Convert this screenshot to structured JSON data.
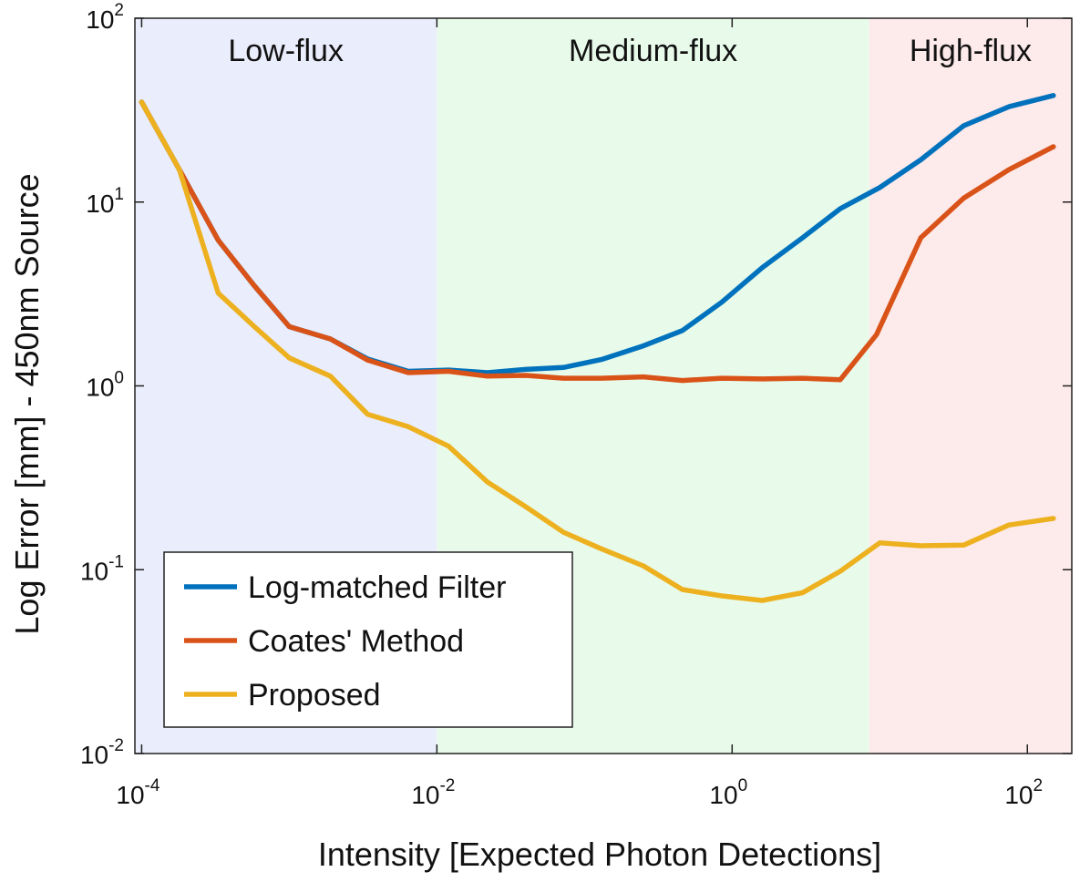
{
  "chart_data": {
    "type": "line",
    "title": "",
    "xlabel": "Intensity [Expected Photon Detections]",
    "ylabel": "Log Error [mm] - 450nm Source",
    "xscale": "log",
    "yscale": "log",
    "xlim": [
      9e-05,
      200
    ],
    "ylim": [
      0.01,
      100
    ],
    "xticks": [
      {
        "value": 0.0001,
        "base": "10",
        "exp": "-4"
      },
      {
        "value": 0.01,
        "base": "10",
        "exp": "-2"
      },
      {
        "value": 1,
        "base": "10",
        "exp": "0"
      },
      {
        "value": 100,
        "base": "10",
        "exp": "2"
      }
    ],
    "yticks": [
      {
        "value": 0.01,
        "base": "10",
        "exp": "-2"
      },
      {
        "value": 0.1,
        "base": "10",
        "exp": "-1"
      },
      {
        "value": 1,
        "base": "10",
        "exp": "0"
      },
      {
        "value": 10,
        "base": "10",
        "exp": "1"
      },
      {
        "value": 100,
        "base": "10",
        "exp": "2"
      }
    ],
    "regions": [
      {
        "label": "Low-flux",
        "x_from": 9e-05,
        "x_to": 0.01,
        "color": "#eaedfb"
      },
      {
        "label": "Medium-flux",
        "x_from": 0.01,
        "x_to": 8.5,
        "color": "#e8fbea"
      },
      {
        "label": "High-flux",
        "x_from": 8.5,
        "x_to": 200,
        "color": "#fdeaea"
      }
    ],
    "grid": false,
    "legend_position": "bottom-left",
    "series": [
      {
        "name": "Log-matched Filter",
        "color": "#0072bd",
        "x": [
          0.0001,
          0.00018,
          0.00033,
          0.00058,
          0.001,
          0.0019,
          0.0034,
          0.0064,
          0.012,
          0.022,
          0.04,
          0.072,
          0.13,
          0.25,
          0.46,
          0.85,
          1.6,
          3.0,
          5.4,
          10,
          19,
          37,
          75,
          150
        ],
        "values": [
          35,
          15,
          6.2,
          3.5,
          2.1,
          1.8,
          1.4,
          1.2,
          1.22,
          1.18,
          1.23,
          1.26,
          1.39,
          1.65,
          2.0,
          2.85,
          4.4,
          6.4,
          9.2,
          12,
          17,
          26,
          33,
          38
        ]
      },
      {
        "name": "Coates' Method",
        "color": "#d95319",
        "x": [
          0.0001,
          0.00018,
          0.00033,
          0.00058,
          0.001,
          0.0019,
          0.0034,
          0.0064,
          0.012,
          0.022,
          0.04,
          0.072,
          0.13,
          0.25,
          0.46,
          0.85,
          1.6,
          3.0,
          5.4,
          9.5,
          19,
          37,
          75,
          150
        ],
        "values": [
          35,
          15,
          6.2,
          3.5,
          2.1,
          1.8,
          1.38,
          1.18,
          1.2,
          1.13,
          1.14,
          1.1,
          1.1,
          1.12,
          1.07,
          1.1,
          1.09,
          1.1,
          1.08,
          1.9,
          6.4,
          10.5,
          15,
          20
        ]
      },
      {
        "name": "Proposed",
        "color": "#edb120",
        "x": [
          0.0001,
          0.00018,
          0.00033,
          0.00058,
          0.001,
          0.0019,
          0.0034,
          0.0064,
          0.012,
          0.022,
          0.04,
          0.072,
          0.13,
          0.25,
          0.46,
          0.85,
          1.6,
          3.0,
          5.4,
          10,
          19,
          37,
          75,
          150
        ],
        "values": [
          35,
          15,
          3.2,
          2.1,
          1.42,
          1.13,
          0.7,
          0.6,
          0.47,
          0.3,
          0.22,
          0.16,
          0.13,
          0.105,
          0.078,
          0.072,
          0.068,
          0.075,
          0.098,
          0.14,
          0.135,
          0.136,
          0.175,
          0.19
        ]
      }
    ]
  }
}
